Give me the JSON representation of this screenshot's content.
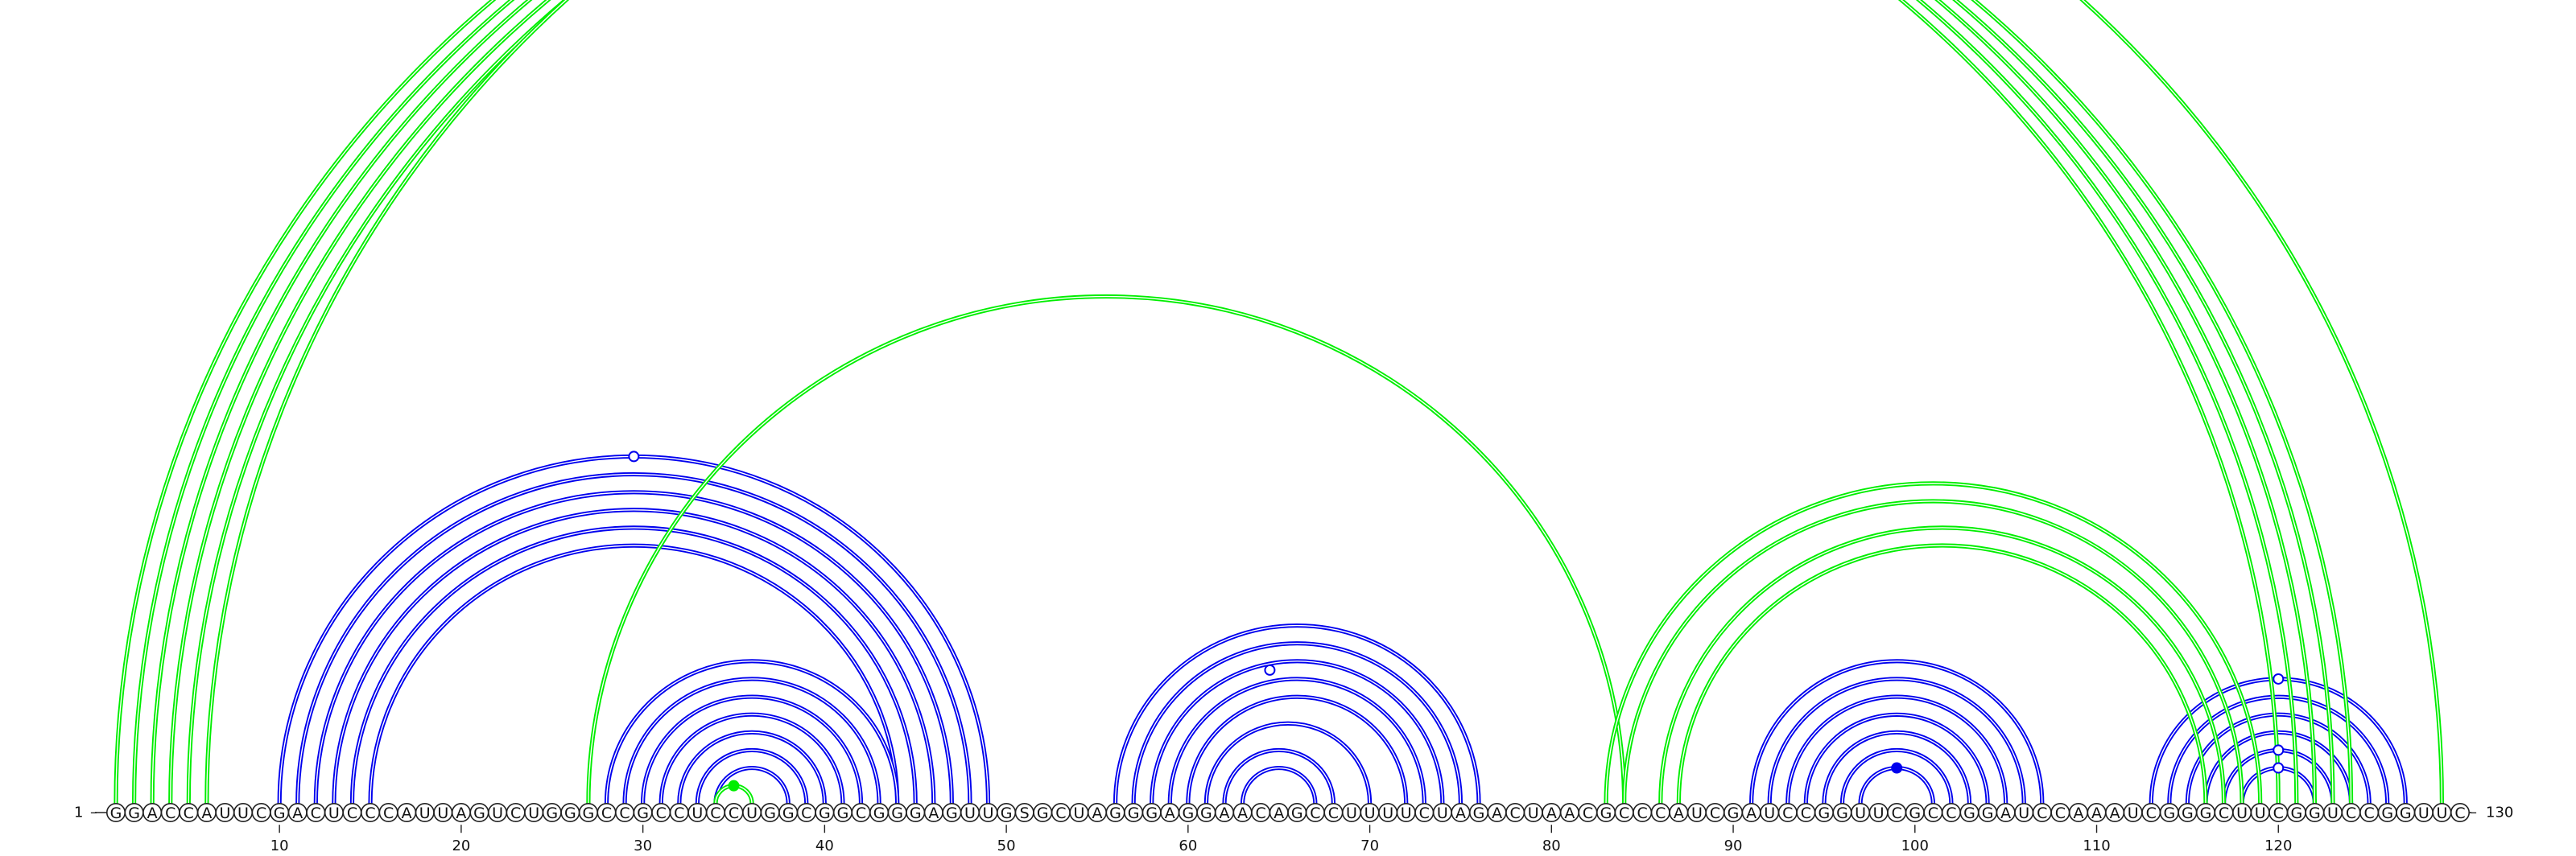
{
  "sequence": "GGACCAUUCGACUCCCAUUAGUCUGGGCCGCCUCCUGGCGGCGGGAGUUGSGCUAGGGAGGAACAGCCUUUUCUAGACUAACGCCCAUCGAUCCGGUUCGCCGGAUCCAAAUCGGGCUUCGGUCCGGUUC",
  "start_label": "1",
  "end_label": "130",
  "ticks": [
    10,
    20,
    30,
    40,
    50,
    60,
    70,
    80,
    90,
    100,
    110,
    120
  ],
  "colors": {
    "nested_pairs": "#0000ee",
    "crossing_pairs": "#00ee00"
  },
  "base_pairs": {
    "blue": [
      [
        10,
        49
      ],
      [
        11,
        48
      ],
      [
        12,
        47
      ],
      [
        13,
        46
      ],
      [
        14,
        45
      ],
      [
        15,
        44
      ],
      [
        28,
        44
      ],
      [
        29,
        43
      ],
      [
        30,
        42
      ],
      [
        31,
        41
      ],
      [
        32,
        40
      ],
      [
        33,
        39
      ],
      [
        34,
        38
      ],
      [
        56,
        76
      ],
      [
        57,
        75
      ],
      [
        58,
        74
      ],
      [
        59,
        73
      ],
      [
        60,
        72
      ],
      [
        61,
        70
      ],
      [
        62,
        68
      ],
      [
        63,
        67
      ],
      [
        91,
        107
      ],
      [
        92,
        106
      ],
      [
        93,
        105
      ],
      [
        94,
        104
      ],
      [
        95,
        103
      ],
      [
        96,
        102
      ],
      [
        97,
        101
      ],
      [
        113,
        127
      ],
      [
        114,
        126
      ],
      [
        115,
        125
      ],
      [
        116,
        124
      ],
      [
        117,
        123
      ],
      [
        118,
        122
      ]
    ],
    "green": [
      [
        1,
        120
      ],
      [
        2,
        121
      ],
      [
        3,
        122
      ],
      [
        4,
        123
      ],
      [
        5,
        124
      ],
      [
        6,
        129
      ],
      [
        27,
        84
      ],
      [
        34,
        36
      ],
      [
        83,
        119
      ],
      [
        84,
        118
      ],
      [
        86,
        117
      ],
      [
        87,
        116
      ]
    ],
    "hollow_markers": [
      {
        "pair": [
          6,
          129
        ],
        "color": "green"
      },
      {
        "pair": [
          10,
          49
        ],
        "color": "blue"
      },
      {
        "pair": [
          57,
          72
        ],
        "color": "blue"
      },
      {
        "pair": [
          113,
          127
        ],
        "color": "blue"
      },
      {
        "pair": [
          117,
          123
        ],
        "color": "blue"
      },
      {
        "pair": [
          118,
          122
        ],
        "color": "blue"
      }
    ],
    "filled_markers": [
      {
        "pair": [
          34,
          36
        ],
        "color": "green"
      },
      {
        "pair": [
          97,
          101
        ],
        "color": "blue"
      }
    ]
  }
}
